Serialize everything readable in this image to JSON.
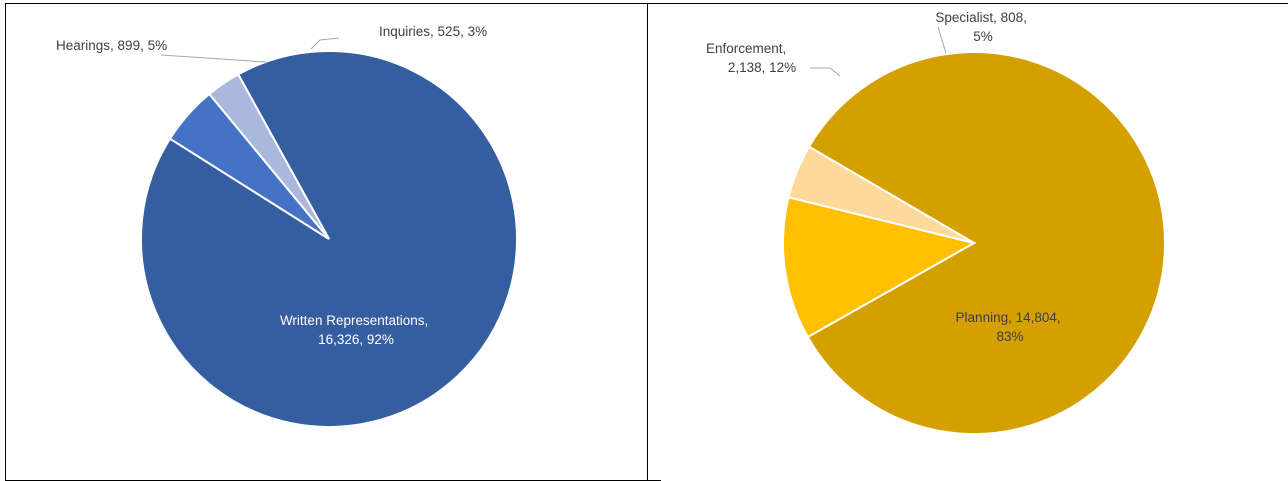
{
  "chart_data": [
    {
      "type": "pie",
      "title": "",
      "slices": [
        {
          "label": "Written Representations",
          "value_text": "16,326",
          "pct_text": "92%",
          "value": 16326,
          "pct": 92,
          "color": "#355ea0"
        },
        {
          "label": "Hearings",
          "value_text": "899",
          "pct_text": "5%",
          "value": 899,
          "pct": 5,
          "color": "#4472c4"
        },
        {
          "label": "Inquiries",
          "value_text": "525",
          "pct_text": "3%",
          "value": 525,
          "pct": 3,
          "color": "#a9b8dc"
        }
      ]
    },
    {
      "type": "pie",
      "title": "",
      "slices": [
        {
          "label": "Planning",
          "value_text": "14,804",
          "pct_text": "83%",
          "value": 14804,
          "pct": 83,
          "color": "#d4a000"
        },
        {
          "label": "Enforcement",
          "value_text": "2,138",
          "pct_text": "12%",
          "value": 2138,
          "pct": 12,
          "color": "#ffc000"
        },
        {
          "label": "Specialist",
          "value_text": "808",
          "pct_text": "5%",
          "value": 808,
          "pct": 5,
          "color": "#ffd99a"
        }
      ]
    }
  ]
}
